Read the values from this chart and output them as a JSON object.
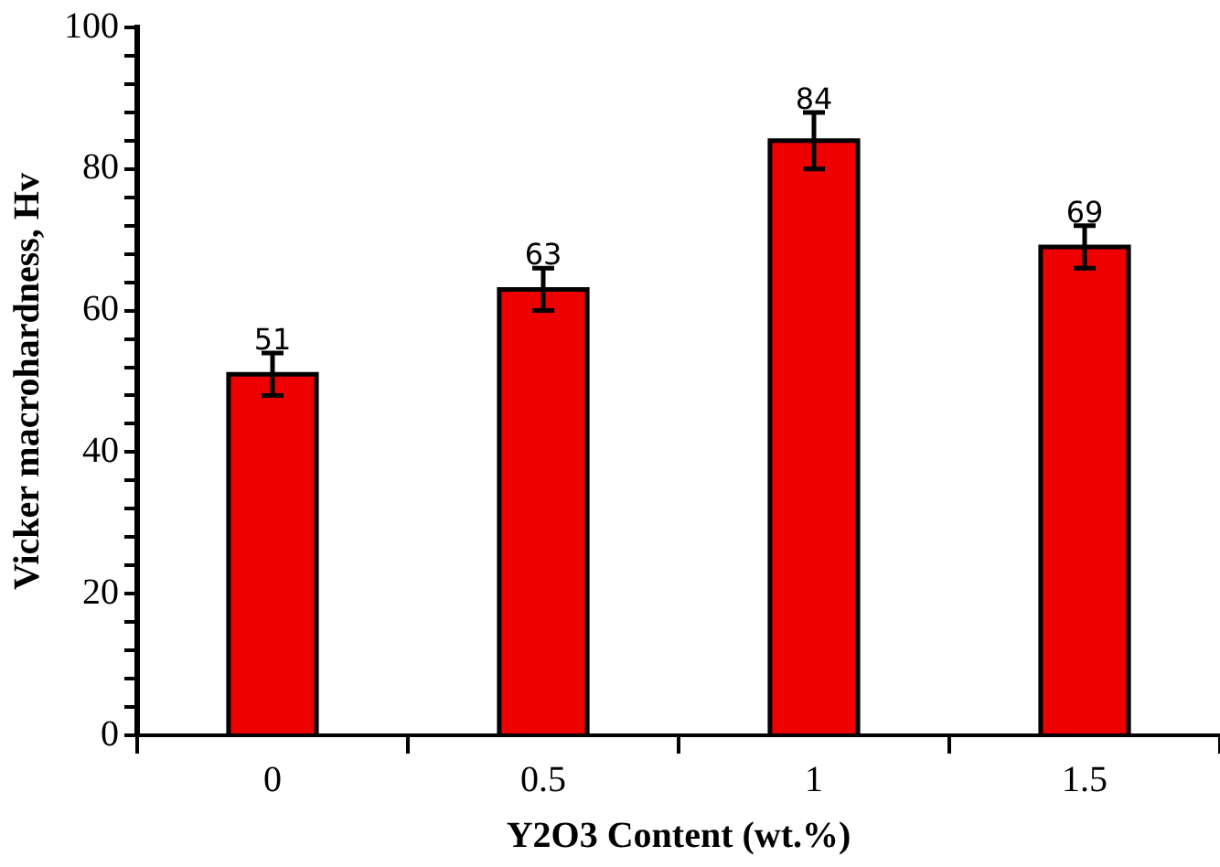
{
  "chart_data": {
    "type": "bar",
    "xlabel": "Y2O3 Content (wt.%)",
    "ylabel": "Vicker macrohardness, Hv",
    "categories": [
      "0",
      "0.5",
      "1",
      "1.5"
    ],
    "values": [
      51,
      63,
      84,
      69
    ],
    "errors": [
      3,
      3,
      4,
      3
    ],
    "color": "#ee0000",
    "data_labels": true,
    "ylim": [
      0,
      100
    ],
    "yticks": [
      0,
      {
        "value": 4,
        "label": null
      },
      {
        "value": 8,
        "label": null
      },
      {
        "value": 12,
        "label": null
      },
      {
        "value": 16,
        "label": null
      },
      20,
      {
        "value": 24,
        "label": null
      },
      {
        "value": 28,
        "label": null
      },
      {
        "value": 32,
        "label": null
      },
      {
        "value": 36,
        "label": null
      },
      40,
      {
        "value": 44,
        "label": null
      },
      {
        "value": 48,
        "label": null
      },
      {
        "value": 52,
        "label": null
      },
      {
        "value": 56,
        "label": null
      },
      60,
      {
        "value": 64,
        "label": null
      },
      {
        "value": 68,
        "label": null
      },
      {
        "value": 72,
        "label": null
      },
      {
        "value": 76,
        "label": null
      },
      80,
      {
        "value": 84,
        "label": null
      },
      {
        "value": 88,
        "label": null
      },
      {
        "value": 92,
        "label": null
      },
      {
        "value": 96,
        "label": null
      },
      100
    ],
    "grid": false,
    "legend": false
  }
}
